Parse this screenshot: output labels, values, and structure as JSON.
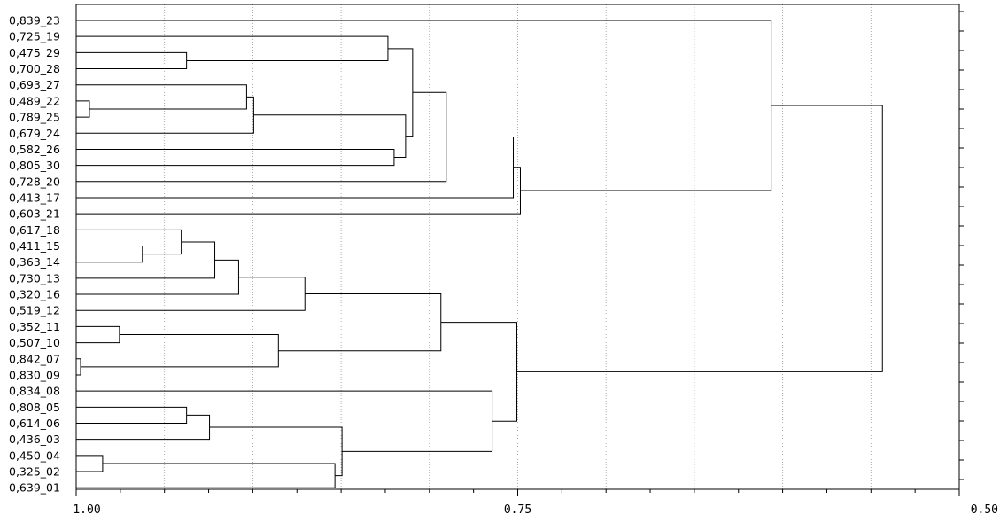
{
  "chart_data": {
    "type": "dendrogram",
    "orientation": "horizontal",
    "grid": "vertical dotted",
    "x_axis": {
      "min": 0.5,
      "max": 1.0,
      "reversed": true,
      "ticks": [
        1.0,
        0.75,
        0.5
      ],
      "tick_labels": [
        "1.00",
        "0.75",
        "0.50"
      ],
      "gridlines": [
        0.95,
        0.9,
        0.85,
        0.8,
        0.75,
        0.7,
        0.65,
        0.6,
        0.55
      ]
    },
    "leaves": [
      "0,839_23",
      "0,725_19",
      "0,475_29",
      "0,700_28",
      "0,693_27",
      "0,489_22",
      "0,789_25",
      "0,679_24",
      "0,582_26",
      "0,805_30",
      "0,728_20",
      "0,413_17",
      "0,603_21",
      "0,617_18",
      "0,411_15",
      "0,363_14",
      "0,730_13",
      "0,320_16",
      "0,519_12",
      "0,352_11",
      "0,507_10",
      "0,842_07",
      "0,830_09",
      "0,834_08",
      "0,808_05",
      "0,614_06",
      "0,436_03",
      "0,450_04",
      "0,325_02",
      "0,639_01"
    ],
    "merges": [
      {
        "id": "A",
        "children": [
          "0,842_07",
          "0,830_09"
        ],
        "height": 0.9975
      },
      {
        "id": "B",
        "children": [
          "0,489_22",
          "0,789_25"
        ],
        "height": 0.9925
      },
      {
        "id": "C",
        "children": [
          "0,450_04",
          "0,325_02"
        ],
        "height": 0.985
      },
      {
        "id": "D",
        "children": [
          "0,352_11",
          "0,507_10"
        ],
        "height": 0.9755
      },
      {
        "id": "E",
        "children": [
          "0,411_15",
          "0,363_14"
        ],
        "height": 0.9625
      },
      {
        "id": "F",
        "children": [
          "0,617_18",
          "E"
        ],
        "height": 0.9405
      },
      {
        "id": "G",
        "children": [
          "0,475_29",
          "0,700_28"
        ],
        "height": 0.9375
      },
      {
        "id": "H",
        "children": [
          "0,808_05",
          "0,614_06"
        ],
        "height": 0.9375
      },
      {
        "id": "I",
        "children": [
          "H",
          "0,436_03"
        ],
        "height": 0.9245
      },
      {
        "id": "J",
        "children": [
          "F",
          "0,730_13"
        ],
        "height": 0.9215
      },
      {
        "id": "K",
        "children": [
          "0,693_27",
          "B"
        ],
        "height": 0.9035
      },
      {
        "id": "L",
        "children": [
          "J",
          "0,320_16"
        ],
        "height": 0.908
      },
      {
        "id": "M",
        "children": [
          "K",
          "0,679_24"
        ],
        "height": 0.8995
      },
      {
        "id": "N",
        "children": [
          "D",
          "A"
        ],
        "height": 0.8855
      },
      {
        "id": "O",
        "children": [
          "C",
          "0,639_01"
        ],
        "height": 0.8535
      },
      {
        "id": "P",
        "children": [
          "I",
          "O"
        ],
        "height": 0.8495
      },
      {
        "id": "Q",
        "children": [
          "L",
          "0,519_12"
        ],
        "height": 0.8705
      },
      {
        "id": "R",
        "children": [
          "0,582_26",
          "0,805_30"
        ],
        "height": 0.82
      },
      {
        "id": "S",
        "children": [
          "M",
          "R"
        ],
        "height": 0.8135
      },
      {
        "id": "T",
        "children": [
          "0,725_19",
          "G"
        ],
        "height": 0.8235
      },
      {
        "id": "U",
        "children": [
          "T",
          "S"
        ],
        "height": 0.8095
      },
      {
        "id": "V",
        "children": [
          "U",
          "0,728_20"
        ],
        "height": 0.7905
      },
      {
        "id": "W",
        "children": [
          "Q",
          "N"
        ],
        "height": 0.7935
      },
      {
        "id": "X",
        "children": [
          "0,834_08",
          "P"
        ],
        "height": 0.7645
      },
      {
        "id": "Y",
        "children": [
          "W",
          "X"
        ],
        "height": 0.7505
      },
      {
        "id": "Z",
        "children": [
          "V",
          "0,413_17"
        ],
        "height": 0.7525
      },
      {
        "id": "AA",
        "children": [
          "Z",
          "0,603_21"
        ],
        "height": 0.7485
      },
      {
        "id": "AB",
        "children": [
          "0,839_23",
          "AA"
        ],
        "height": 0.6065
      },
      {
        "id": "AC",
        "children": [
          "AB",
          "Y"
        ],
        "height": 0.5435
      }
    ]
  }
}
